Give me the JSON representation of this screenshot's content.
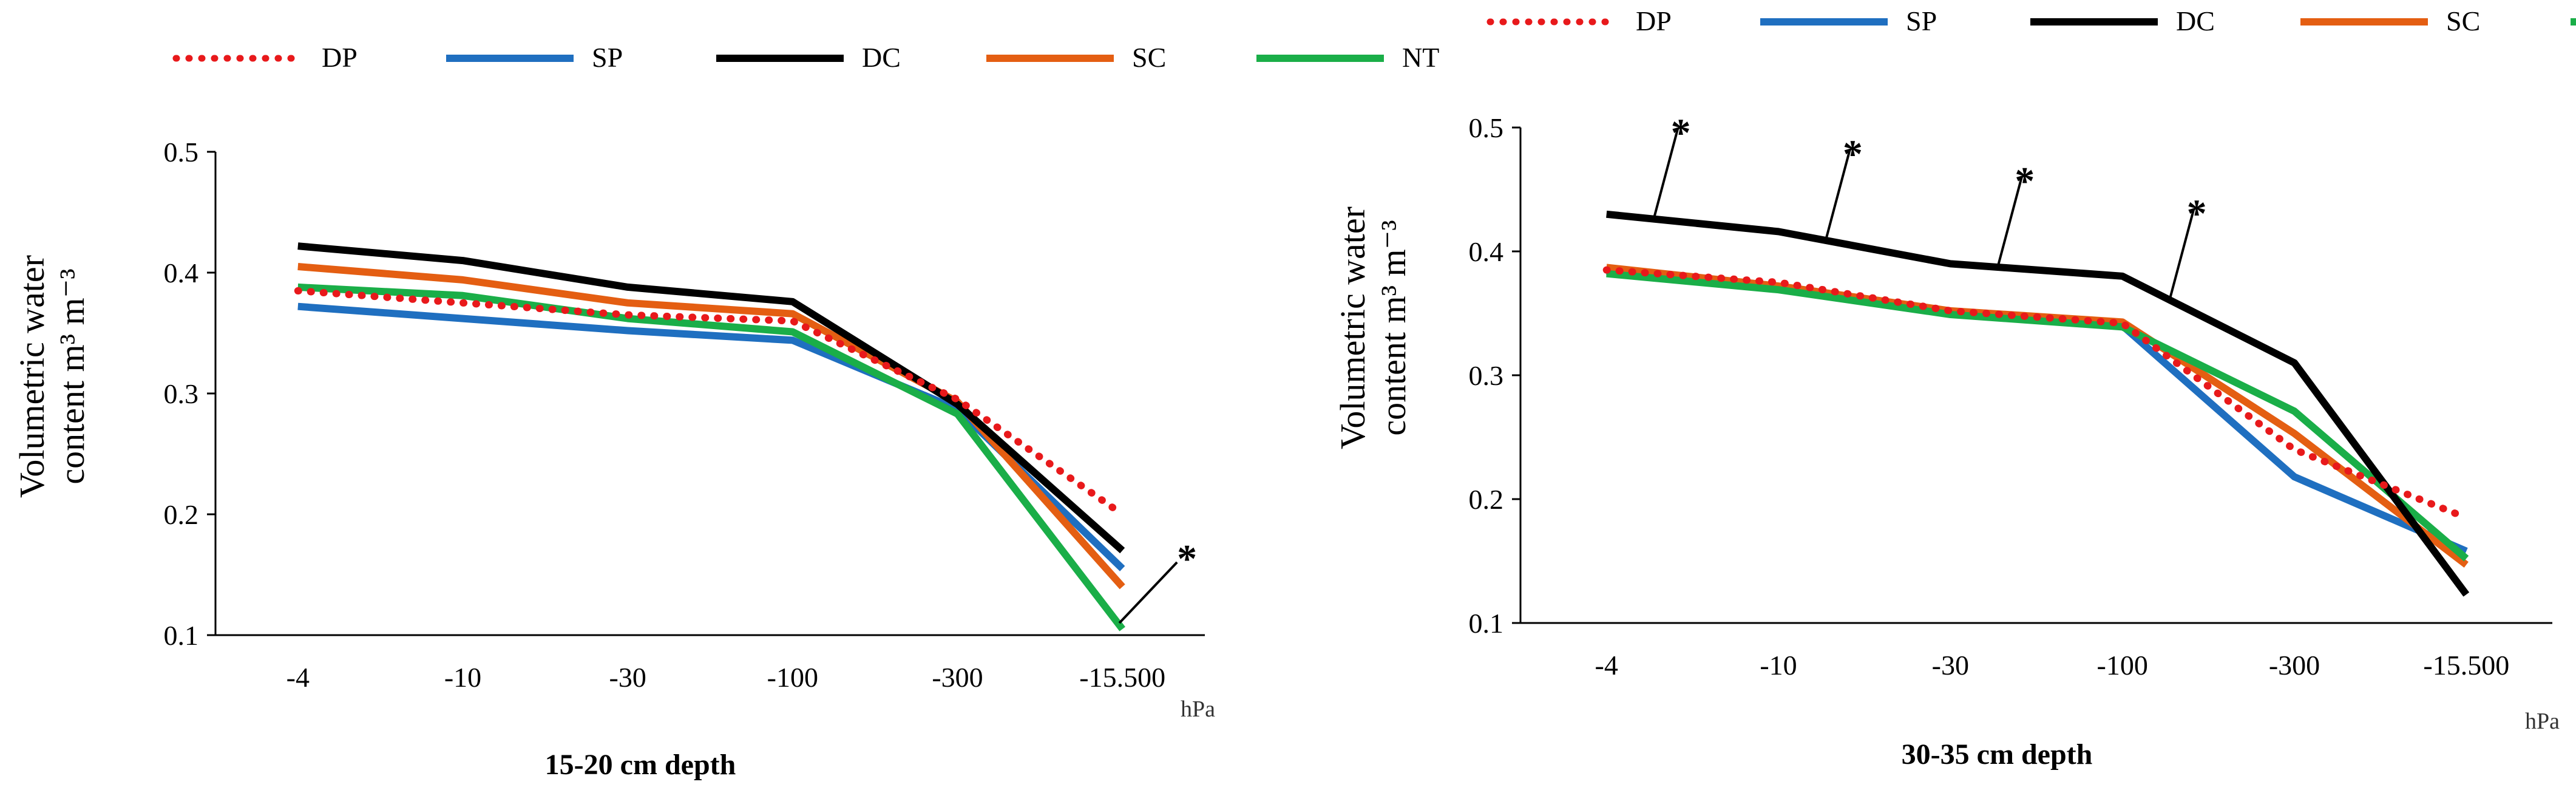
{
  "legend": [
    {
      "name": "DP",
      "color": "#e8191b",
      "dash": true
    },
    {
      "name": "SP",
      "color": "#1f6fc0",
      "dash": false
    },
    {
      "name": "DC",
      "color": "#000000",
      "dash": false
    },
    {
      "name": "SC",
      "color": "#e45e12",
      "dash": false
    },
    {
      "name": "NT",
      "color": "#1aae48",
      "dash": false
    }
  ],
  "chart_data": [
    {
      "type": "line",
      "caption": "15-20 cm depth",
      "ylabel_line1": "Volumetric water",
      "ylabel_line2": "content m³ m⁻³",
      "unit": "hPa",
      "categories": [
        "-4",
        "-10",
        "-30",
        "-100",
        "-300",
        "-15.500"
      ],
      "yticks": [
        "0.5",
        "0.4",
        "0.3",
        "0.2",
        "0.1"
      ],
      "ylim": [
        0.1,
        0.5
      ],
      "series": [
        {
          "name": "DP",
          "values": [
            0.385,
            0.375,
            0.365,
            0.36,
            0.295,
            0.2
          ]
        },
        {
          "name": "SP",
          "values": [
            0.372,
            0.362,
            0.352,
            0.344,
            0.287,
            0.155
          ]
        },
        {
          "name": "DC",
          "values": [
            0.422,
            0.41,
            0.388,
            0.376,
            0.291,
            0.17
          ]
        },
        {
          "name": "SC",
          "values": [
            0.405,
            0.394,
            0.375,
            0.366,
            0.293,
            0.14
          ]
        },
        {
          "name": "NT",
          "values": [
            0.388,
            0.381,
            0.362,
            0.351,
            0.283,
            0.105
          ]
        }
      ],
      "annotations": [
        {
          "label": "*",
          "category_index": 5,
          "series": "NT"
        }
      ]
    },
    {
      "type": "line",
      "caption": "30-35 cm depth",
      "ylabel_line1": "Volumetric water",
      "ylabel_line2": "content m³ m⁻³",
      "unit": "hPa",
      "categories": [
        "-4",
        "-10",
        "-30",
        "-100",
        "-300",
        "-15.500"
      ],
      "yticks": [
        "0.5",
        "0.4",
        "0.3",
        "0.2",
        "0.1"
      ],
      "ylim": [
        0.1,
        0.5
      ],
      "series": [
        {
          "name": "DP",
          "values": [
            0.385,
            0.375,
            0.352,
            0.342,
            0.24,
            0.185
          ]
        },
        {
          "name": "SP",
          "values": [
            0.384,
            0.37,
            0.35,
            0.34,
            0.218,
            0.158
          ]
        },
        {
          "name": "DC",
          "values": [
            0.43,
            0.416,
            0.39,
            0.38,
            0.31,
            0.123
          ]
        },
        {
          "name": "SC",
          "values": [
            0.387,
            0.372,
            0.352,
            0.343,
            0.253,
            0.147
          ]
        },
        {
          "name": "NT",
          "values": [
            0.382,
            0.369,
            0.349,
            0.339,
            0.271,
            0.152
          ]
        }
      ],
      "annotations": [
        {
          "label": "*",
          "category_index": 0,
          "series": "DC"
        },
        {
          "label": "*",
          "category_index": 1,
          "series": "DC"
        },
        {
          "label": "*",
          "category_index": 2,
          "series": "DC"
        },
        {
          "label": "*",
          "category_index": 3,
          "series": "DC"
        }
      ]
    }
  ]
}
